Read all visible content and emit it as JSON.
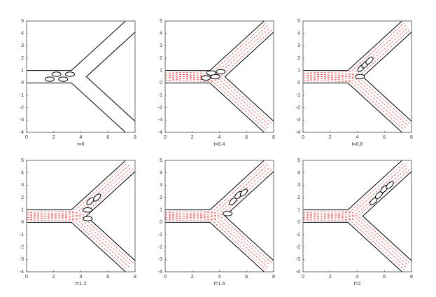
{
  "chart_data": [
    {
      "type": "line",
      "xlabel": "t=0",
      "xlim": [
        0,
        8
      ],
      "ylim": [
        -4,
        5
      ],
      "xticks": [
        0,
        2,
        4,
        6,
        8
      ],
      "yticks": [
        -4,
        -3,
        -2,
        -1,
        0,
        1,
        2,
        3,
        4,
        5
      ],
      "flow": false,
      "walls": [
        {
          "x": [
            0,
            3.3,
            7.3
          ],
          "y": [
            1,
            1,
            5
          ]
        },
        {
          "x": [
            0,
            3.3,
            7.3
          ],
          "y": [
            0,
            0,
            -4
          ]
        },
        {
          "x": [
            8,
            4.6,
            4.4,
            4.6,
            8
          ],
          "y": [
            4.1,
            0.7,
            0.5,
            0.3,
            -3.1
          ]
        }
      ],
      "cells_x": [
        1.7,
        2.7,
        2.2,
        3.2
      ],
      "cells_y": [
        0.3,
        0.3,
        0.7,
        0.7
      ]
    },
    {
      "type": "line",
      "xlabel": "t=0.4",
      "xlim": [
        0,
        8
      ],
      "ylim": [
        -4,
        5
      ],
      "xticks": [
        0,
        2,
        4,
        6,
        8
      ],
      "yticks": [
        -4,
        -3,
        -2,
        -1,
        0,
        1,
        2,
        3,
        4,
        5
      ],
      "flow": true,
      "walls": [
        {
          "x": [
            0,
            3.3,
            7.3
          ],
          "y": [
            1,
            1,
            5
          ]
        },
        {
          "x": [
            0,
            3.3,
            7.3
          ],
          "y": [
            0,
            0,
            -4
          ]
        },
        {
          "x": [
            8,
            4.6,
            4.4,
            4.6,
            8
          ],
          "y": [
            4.1,
            0.7,
            0.5,
            0.3,
            -3.1
          ]
        }
      ],
      "cells_x": [
        3,
        3.7,
        3.4,
        4.1
      ],
      "cells_y": [
        0.4,
        0.5,
        0.8,
        0.9
      ]
    },
    {
      "type": "line",
      "xlabel": "t=0.8",
      "xlim": [
        0,
        8
      ],
      "ylim": [
        -4,
        5
      ],
      "xticks": [
        0,
        2,
        4,
        6,
        8
      ],
      "yticks": [
        -4,
        -3,
        -2,
        -1,
        0,
        1,
        2,
        3,
        4,
        5
      ],
      "flow": true,
      "walls": [
        {
          "x": [
            0,
            3.3,
            7.3
          ],
          "y": [
            1,
            1,
            5
          ]
        },
        {
          "x": [
            0,
            3.3,
            7.3
          ],
          "y": [
            0,
            0,
            -4
          ]
        },
        {
          "x": [
            8,
            4.6,
            4.4,
            4.6,
            8
          ],
          "y": [
            4.1,
            0.7,
            0.5,
            0.3,
            -3.1
          ]
        }
      ],
      "cells_x": [
        4.2,
        4.3,
        4.6,
        4.9
      ],
      "cells_y": [
        0.5,
        1.2,
        1.5,
        1.8
      ]
    },
    {
      "type": "line",
      "xlabel": "t=1.2",
      "xlim": [
        0,
        8
      ],
      "ylim": [
        -4,
        5
      ],
      "xticks": [
        0,
        2,
        4,
        6,
        8
      ],
      "yticks": [
        -4,
        -3,
        -2,
        -1,
        0,
        1,
        2,
        3,
        4,
        5
      ],
      "flow": true,
      "walls": [
        {
          "x": [
            0,
            3.3,
            7.3
          ],
          "y": [
            1,
            1,
            5
          ]
        },
        {
          "x": [
            0,
            3.3,
            7.3
          ],
          "y": [
            0,
            0,
            -4
          ]
        },
        {
          "x": [
            8,
            4.6,
            4.4,
            4.6,
            8
          ],
          "y": [
            4.1,
            0.7,
            0.5,
            0.3,
            -3.1
          ]
        }
      ],
      "cells_x": [
        4.5,
        4.5,
        4.7,
        5.2
      ],
      "cells_y": [
        0.3,
        1.0,
        1.7,
        2.0
      ]
    },
    {
      "type": "line",
      "xlabel": "t=1.6",
      "xlim": [
        0,
        8
      ],
      "ylim": [
        -4,
        5
      ],
      "xticks": [
        0,
        2,
        4,
        6,
        8
      ],
      "yticks": [
        -4,
        -3,
        -2,
        -1,
        0,
        1,
        2,
        3,
        4,
        5
      ],
      "flow": true,
      "walls": [
        {
          "x": [
            0,
            3.3,
            7.3
          ],
          "y": [
            1,
            1,
            5
          ]
        },
        {
          "x": [
            0,
            3.3,
            7.3
          ],
          "y": [
            0,
            0,
            -4
          ]
        },
        {
          "x": [
            8,
            4.6,
            4.4,
            4.6,
            8
          ],
          "y": [
            4.1,
            0.7,
            0.5,
            0.3,
            -3.1
          ]
        }
      ],
      "cells_x": [
        4.6,
        5.0,
        5.4,
        5.8
      ],
      "cells_y": [
        0.7,
        1.7,
        2.2,
        2.4
      ]
    },
    {
      "type": "line",
      "xlabel": "t=2",
      "xlim": [
        0,
        8
      ],
      "ylim": [
        -4,
        5
      ],
      "xticks": [
        0,
        2,
        4,
        6,
        8
      ],
      "yticks": [
        -4,
        -3,
        -2,
        -1,
        0,
        1,
        2,
        3,
        4,
        5
      ],
      "flow": true,
      "walls": [
        {
          "x": [
            0,
            3.3,
            7.3
          ],
          "y": [
            1,
            1,
            5
          ]
        },
        {
          "x": [
            0,
            3.3,
            7.3
          ],
          "y": [
            0,
            0,
            -4
          ]
        },
        {
          "x": [
            8,
            4.6,
            4.4,
            4.6,
            8
          ],
          "y": [
            4.1,
            0.7,
            0.5,
            0.3,
            -3.1
          ]
        }
      ],
      "cells_x": [
        5.2,
        5.6,
        6.0,
        6.4
      ],
      "cells_y": [
        1.7,
        2.2,
        2.7,
        3.0
      ]
    }
  ]
}
